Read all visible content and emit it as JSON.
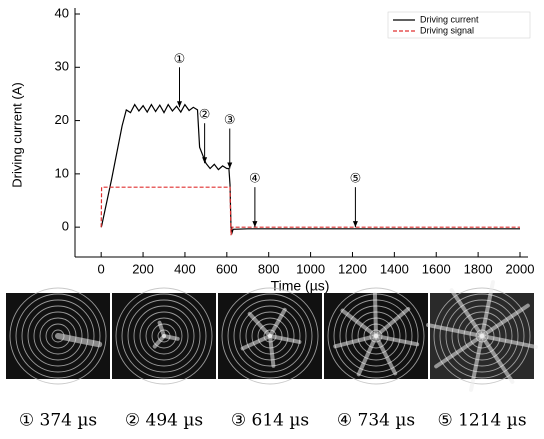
{
  "chart_data": {
    "type": "line",
    "x_label": "Time (µs)",
    "y_label": "Driving current (A)",
    "x": [
      0,
      2,
      50,
      100,
      120,
      140,
      160,
      180,
      200,
      220,
      240,
      260,
      280,
      300,
      320,
      340,
      360,
      380,
      400,
      420,
      440,
      460,
      470,
      500,
      520,
      540,
      560,
      580,
      600,
      610,
      615,
      620,
      625,
      630,
      700,
      800,
      900,
      1000,
      1100,
      1200,
      1300,
      1400,
      1500,
      1600,
      1700,
      1800,
      1900,
      2000
    ],
    "series": [
      {
        "name": "Driving current",
        "color": "#000000",
        "dash": false,
        "values": [
          0,
          0.2,
          9,
          19,
          22,
          21.5,
          23,
          21.8,
          22.8,
          21.6,
          23,
          21.7,
          22.9,
          21.5,
          23,
          21.8,
          22.7,
          21.6,
          23,
          21.9,
          22.5,
          22,
          15,
          12,
          11,
          11.8,
          10.8,
          11.5,
          11,
          11,
          8,
          0,
          -1,
          -0.4,
          -0.3,
          -0.3,
          -0.3,
          -0.3,
          -0.3,
          -0.3,
          -0.3,
          -0.3,
          -0.3,
          -0.3,
          -0.3,
          -0.3,
          -0.3,
          -0.3
        ]
      },
      {
        "name": "Driving signal",
        "color": "#e03030",
        "dash": true,
        "values": [
          0,
          7.5,
          7.5,
          7.5,
          7.5,
          7.5,
          7.5,
          7.5,
          7.5,
          7.5,
          7.5,
          7.5,
          7.5,
          7.5,
          7.5,
          7.5,
          7.5,
          7.5,
          7.5,
          7.5,
          7.5,
          7.5,
          7.5,
          7.5,
          7.5,
          7.5,
          7.5,
          7.5,
          7.5,
          7.5,
          7.5,
          -1.5,
          0,
          0,
          0,
          0,
          0,
          0,
          0,
          0,
          0,
          0,
          0,
          0,
          0,
          0,
          0,
          0
        ]
      }
    ],
    "xlim": [
      -125,
      2000
    ],
    "ylim": [
      -5.6,
      40
    ],
    "xticks": [
      0,
      200,
      400,
      600,
      800,
      1000,
      1200,
      1400,
      1600,
      1800,
      2000
    ],
    "yticks": [
      0,
      10,
      20,
      30,
      40
    ],
    "annotations": [
      {
        "label": "①",
        "x": 374,
        "y": 22.5
      },
      {
        "label": "②",
        "x": 494,
        "y": 12
      },
      {
        "label": "③",
        "x": 614,
        "y": 11
      },
      {
        "label": "④",
        "x": 734,
        "y": 0
      },
      {
        "label": "⑤",
        "x": 1214,
        "y": 0
      }
    ]
  },
  "images": [
    {
      "caption": "① 374 µs"
    },
    {
      "caption": "② 494 µs"
    },
    {
      "caption": "③ 614 µs"
    },
    {
      "caption": "④ 734 µs"
    },
    {
      "caption": "⑤ 1214 µs"
    }
  ]
}
